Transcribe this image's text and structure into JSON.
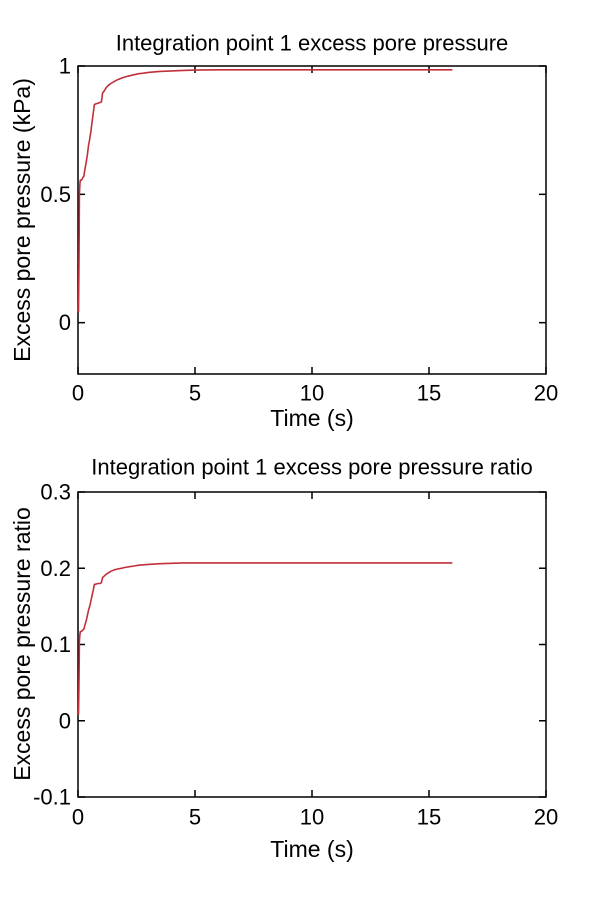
{
  "figure": {
    "background": "#ffffff",
    "axis_color": "#000000",
    "text_color": "#000000",
    "line_color": "#c1303a"
  },
  "chart_data": [
    {
      "type": "line",
      "title": "Integration point 1 excess pore pressure",
      "xlabel": "Time (s)",
      "ylabel": "Excess pore pressure (kPa)",
      "xlim": [
        0,
        20
      ],
      "ylim": [
        -0.2,
        1
      ],
      "xticks": [
        0,
        5,
        10,
        15,
        20
      ],
      "yticks": [
        0,
        0.5,
        1
      ],
      "grid": false,
      "legend": "none",
      "line_color": "#c1303a",
      "series": [
        {
          "name": "excess pore pressure",
          "x": [
            0.02,
            0.04,
            0.05,
            0.06,
            0.08,
            0.1,
            0.15,
            0.2,
            0.25,
            0.3,
            0.35,
            0.4,
            0.45,
            0.5,
            0.55,
            0.6,
            0.65,
            0.7,
            0.75,
            0.85,
            0.95,
            1.0,
            1.05,
            1.1,
            1.2,
            1.3,
            1.4,
            1.55,
            1.7,
            1.85,
            2.0,
            2.2,
            2.4,
            2.6,
            2.8,
            3.0,
            3.5,
            4.0,
            4.5,
            5.0,
            6.0,
            8.0,
            10.0,
            12.0,
            14.0,
            16.0
          ],
          "y": [
            0.04,
            0.2,
            0.35,
            0.5,
            0.54,
            0.555,
            0.555,
            0.565,
            0.57,
            0.6,
            0.625,
            0.655,
            0.69,
            0.715,
            0.745,
            0.78,
            0.815,
            0.85,
            0.852,
            0.855,
            0.858,
            0.86,
            0.895,
            0.9,
            0.915,
            0.925,
            0.932,
            0.94,
            0.947,
            0.952,
            0.957,
            0.962,
            0.966,
            0.97,
            0.972,
            0.975,
            0.979,
            0.981,
            0.983,
            0.984,
            0.985,
            0.985,
            0.985,
            0.985,
            0.985,
            0.985
          ]
        }
      ]
    },
    {
      "type": "line",
      "title": "Integration point 1 excess pore pressure ratio",
      "xlabel": "Time (s)",
      "ylabel": "Excess pore pressure ratio",
      "xlim": [
        0,
        20
      ],
      "ylim": [
        -0.1,
        0.3
      ],
      "xticks": [
        0,
        5,
        10,
        15,
        20
      ],
      "yticks": [
        -0.1,
        0,
        0.1,
        0.2,
        0.3
      ],
      "grid": false,
      "legend": "none",
      "line_color": "#c1303a",
      "series": [
        {
          "name": "excess pore pressure ratio",
          "x": [
            0.02,
            0.04,
            0.05,
            0.06,
            0.08,
            0.1,
            0.15,
            0.2,
            0.25,
            0.3,
            0.35,
            0.4,
            0.45,
            0.5,
            0.55,
            0.6,
            0.65,
            0.7,
            0.75,
            0.85,
            0.95,
            1.0,
            1.05,
            1.1,
            1.2,
            1.3,
            1.4,
            1.55,
            1.7,
            1.85,
            2.0,
            2.2,
            2.4,
            2.6,
            2.8,
            3.0,
            3.5,
            4.0,
            4.5,
            5.0,
            6.0,
            8.0,
            10.0,
            12.0,
            14.0,
            16.0
          ],
          "y": [
            0.008,
            0.042,
            0.074,
            0.105,
            0.113,
            0.117,
            0.117,
            0.119,
            0.12,
            0.126,
            0.131,
            0.138,
            0.145,
            0.15,
            0.157,
            0.164,
            0.171,
            0.179,
            0.179,
            0.18,
            0.18,
            0.181,
            0.188,
            0.189,
            0.192,
            0.194,
            0.196,
            0.198,
            0.199,
            0.2,
            0.201,
            0.202,
            0.203,
            0.204,
            0.2045,
            0.205,
            0.206,
            0.2065,
            0.207,
            0.207,
            0.207,
            0.207,
            0.207,
            0.207,
            0.207,
            0.207
          ]
        }
      ]
    }
  ]
}
